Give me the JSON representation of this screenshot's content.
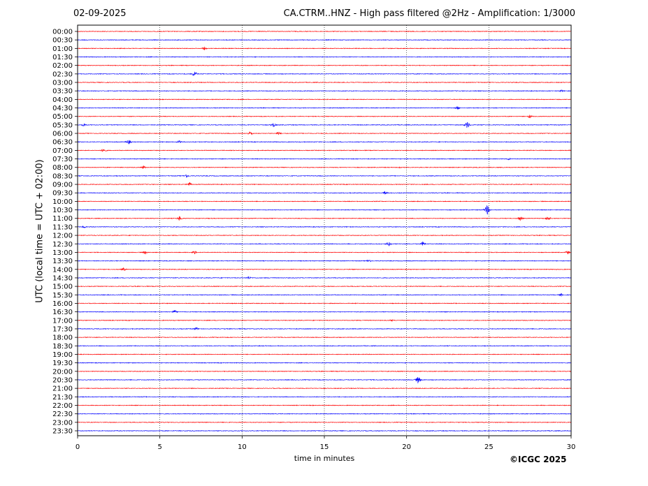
{
  "header": {
    "date": "02-09-2025",
    "title": "CA.CTRM..HNZ - High pass filtered @2Hz - Amplification: 1/3000"
  },
  "footer": {
    "copyright": "©ICGC 2025"
  },
  "colors": {
    "odd_trace": "#ff0000",
    "even_trace": "#0000ff",
    "grid": "#000000"
  },
  "chart_data": {
    "type": "line",
    "title": "CA.CTRM..HNZ - High pass filtered @2Hz - Amplification: 1/3000",
    "xlabel": "time in minutes",
    "ylabel": "UTC (local time = UTC + 02:00)",
    "xlim": [
      0,
      30
    ],
    "x_ticks": [
      "0",
      "5",
      "10",
      "15",
      "20",
      "25",
      "30"
    ],
    "grid": "vertical dotted lines at 5-minute intervals",
    "rows": [
      "00:00",
      "00:30",
      "01:00",
      "01:30",
      "02:00",
      "02:30",
      "03:00",
      "03:30",
      "04:00",
      "04:30",
      "05:00",
      "05:30",
      "06:00",
      "06:30",
      "07:00",
      "07:30",
      "08:00",
      "08:30",
      "09:00",
      "09:30",
      "10:00",
      "10:30",
      "11:00",
      "11:30",
      "12:00",
      "12:30",
      "13:00",
      "13:30",
      "14:00",
      "14:30",
      "15:00",
      "15:30",
      "16:00",
      "16:30",
      "17:00",
      "17:30",
      "18:00",
      "18:30",
      "19:00",
      "19:30",
      "20:00",
      "20:30",
      "21:00",
      "21:30",
      "22:00",
      "22:30",
      "23:00",
      "23:30"
    ],
    "row_colors": [
      "red",
      "blue"
    ],
    "events": [
      {
        "row": "01:00",
        "minute": 7.7,
        "amplitude": 3
      },
      {
        "row": "02:30",
        "minute": 7.1,
        "amplitude": 5
      },
      {
        "row": "03:30",
        "minute": 29.4,
        "amplitude": 2
      },
      {
        "row": "04:30",
        "minute": 23.1,
        "amplitude": 3
      },
      {
        "row": "05:00",
        "minute": 27.5,
        "amplitude": 3
      },
      {
        "row": "05:30",
        "minute": 0.4,
        "amplitude": 3
      },
      {
        "row": "05:30",
        "minute": 11.9,
        "amplitude": 4
      },
      {
        "row": "05:30",
        "minute": 23.7,
        "amplitude": 6
      },
      {
        "row": "06:00",
        "minute": 10.5,
        "amplitude": 4
      },
      {
        "row": "06:00",
        "minute": 12.2,
        "amplitude": 3
      },
      {
        "row": "06:30",
        "minute": 3.1,
        "amplitude": 4
      },
      {
        "row": "06:30",
        "minute": 6.2,
        "amplitude": 3
      },
      {
        "row": "07:00",
        "minute": 1.6,
        "amplitude": 4
      },
      {
        "row": "07:30",
        "minute": 26.2,
        "amplitude": 2
      },
      {
        "row": "08:00",
        "minute": 4.0,
        "amplitude": 3
      },
      {
        "row": "08:00",
        "minute": 19.6,
        "amplitude": 2
      },
      {
        "row": "08:30",
        "minute": 6.6,
        "amplitude": 3
      },
      {
        "row": "09:00",
        "minute": 6.8,
        "amplitude": 4
      },
      {
        "row": "09:30",
        "minute": 18.7,
        "amplitude": 3
      },
      {
        "row": "10:30",
        "minute": 24.9,
        "amplitude": 8
      },
      {
        "row": "11:00",
        "minute": 6.2,
        "amplitude": 4
      },
      {
        "row": "11:00",
        "minute": 26.9,
        "amplitude": 4
      },
      {
        "row": "11:00",
        "minute": 28.6,
        "amplitude": 4
      },
      {
        "row": "11:30",
        "minute": 0.4,
        "amplitude": 2
      },
      {
        "row": "12:30",
        "minute": 18.9,
        "amplitude": 4
      },
      {
        "row": "12:30",
        "minute": 21.0,
        "amplitude": 4
      },
      {
        "row": "13:00",
        "minute": 4.1,
        "amplitude": 3
      },
      {
        "row": "13:00",
        "minute": 7.1,
        "amplitude": 3
      },
      {
        "row": "13:00",
        "minute": 29.8,
        "amplitude": 3
      },
      {
        "row": "13:30",
        "minute": 17.7,
        "amplitude": 3
      },
      {
        "row": "14:00",
        "minute": 2.8,
        "amplitude": 3
      },
      {
        "row": "14:30",
        "minute": 10.4,
        "amplitude": 3
      },
      {
        "row": "15:30",
        "minute": 29.4,
        "amplitude": 2
      },
      {
        "row": "16:30",
        "minute": 5.9,
        "amplitude": 3
      },
      {
        "row": "17:00",
        "minute": 19.1,
        "amplitude": 2
      },
      {
        "row": "17:30",
        "minute": 7.2,
        "amplitude": 3
      },
      {
        "row": "20:30",
        "minute": 20.7,
        "amplitude": 6
      }
    ]
  }
}
